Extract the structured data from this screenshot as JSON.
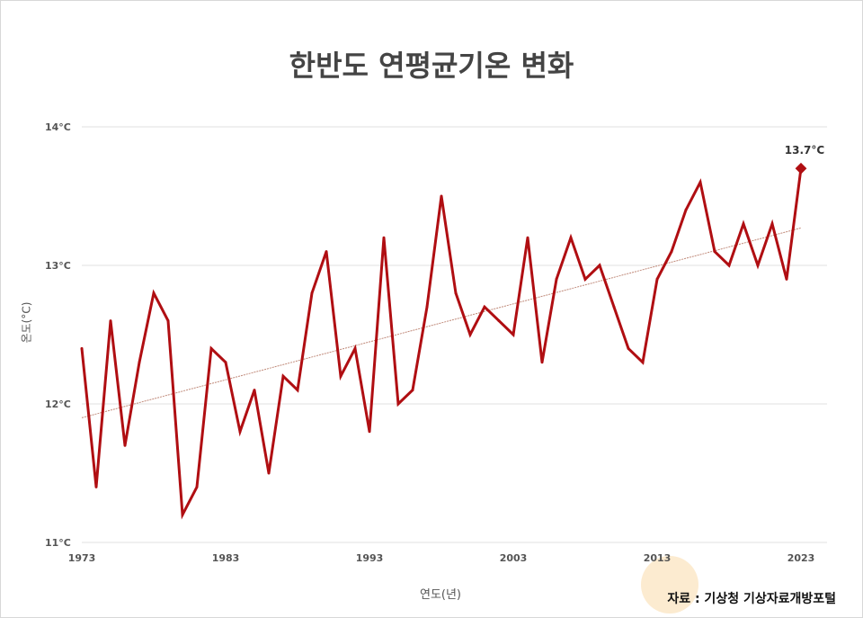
{
  "chart_data": {
    "type": "line",
    "title": "한반도 연평균기온 변화",
    "xlabel": "연도(년)",
    "ylabel": "온도(°C)",
    "source": "자료 : 기상청 기상자료개방포털",
    "ylim": [
      11,
      14
    ],
    "xlim": [
      1973,
      2023
    ],
    "grid": true,
    "y_ticks": [
      "11°C",
      "12°C",
      "13°C",
      "14°C"
    ],
    "x_ticks": [
      "1973",
      "1983",
      "1993",
      "2003",
      "2013",
      "2023"
    ],
    "line_color": "#b00e12",
    "trend_color": "#c08a7a",
    "annotation": "13.7°C",
    "x": [
      1973,
      1974,
      1975,
      1976,
      1977,
      1978,
      1979,
      1980,
      1981,
      1982,
      1983,
      1984,
      1985,
      1986,
      1987,
      1988,
      1989,
      1990,
      1991,
      1992,
      1993,
      1994,
      1995,
      1996,
      1997,
      1998,
      1999,
      2000,
      2001,
      2002,
      2003,
      2004,
      2005,
      2006,
      2007,
      2008,
      2009,
      2010,
      2011,
      2012,
      2013,
      2014,
      2015,
      2016,
      2017,
      2018,
      2019,
      2020,
      2021,
      2022,
      2023
    ],
    "values": [
      12.4,
      11.4,
      12.6,
      11.7,
      12.3,
      12.8,
      12.6,
      11.2,
      11.4,
      12.4,
      12.3,
      11.8,
      12.1,
      11.5,
      12.2,
      12.1,
      12.8,
      13.1,
      12.2,
      12.4,
      11.8,
      13.2,
      12.0,
      12.1,
      12.7,
      13.5,
      12.8,
      12.5,
      12.7,
      12.6,
      12.5,
      13.2,
      12.3,
      12.9,
      13.2,
      12.9,
      13.0,
      12.7,
      12.4,
      12.3,
      12.9,
      13.1,
      13.4,
      13.6,
      13.1,
      13.0,
      13.3,
      13.0,
      13.3,
      12.9,
      13.7
    ],
    "trend": {
      "start": 11.9,
      "end": 13.27
    }
  }
}
